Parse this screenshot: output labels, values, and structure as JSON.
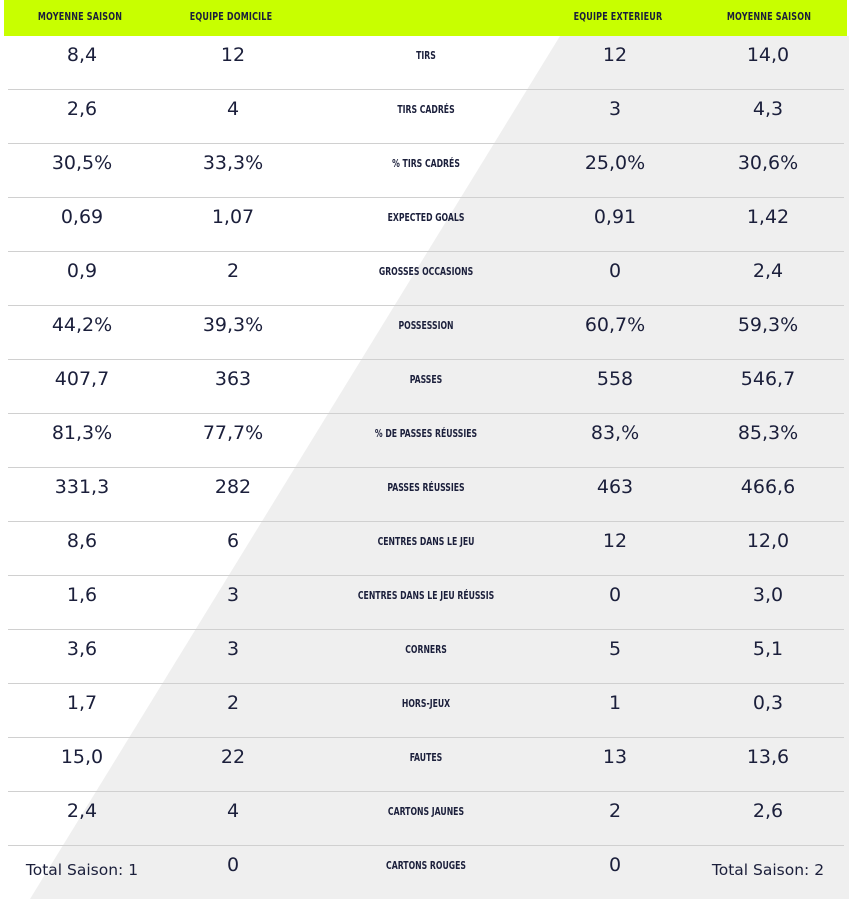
{
  "header": {
    "home_avg": "MOYENNE SAISON",
    "home_team": "EQUIPE DOMICILE",
    "stat": "",
    "away_team": "EQUIPE EXTERIEUR",
    "away_avg": "MOYENNE SAISON"
  },
  "colors": {
    "header_bg": "#c8ff00",
    "text": "#1b1f3b",
    "diagonal_panel": "#efefef",
    "row_divider": "#d0d0d0"
  },
  "rows": [
    {
      "home_avg": "8,4",
      "home": "12",
      "stat": "TIRS",
      "away": "12",
      "away_avg": "14,0"
    },
    {
      "home_avg": "2,6",
      "home": "4",
      "stat": "TIRS CADRÉS",
      "away": "3",
      "away_avg": "4,3"
    },
    {
      "home_avg": "30,5%",
      "home": "33,3%",
      "stat": "% TIRS CADRÉS",
      "away": "25,0%",
      "away_avg": "30,6%"
    },
    {
      "home_avg": "0,69",
      "home": "1,07",
      "stat": "EXPECTED GOALS",
      "away": "0,91",
      "away_avg": "1,42"
    },
    {
      "home_avg": "0,9",
      "home": "2",
      "stat": "GROSSES OCCASIONS",
      "away": "0",
      "away_avg": "2,4"
    },
    {
      "home_avg": "44,2%",
      "home": "39,3%",
      "stat": "POSSESSION",
      "away": "60,7%",
      "away_avg": "59,3%"
    },
    {
      "home_avg": "407,7",
      "home": "363",
      "stat": "PASSES",
      "away": "558",
      "away_avg": "546,7"
    },
    {
      "home_avg": "81,3%",
      "home": "77,7%",
      "stat": "% DE PASSES RÉUSSIES",
      "away": "83,%",
      "away_avg": "85,3%"
    },
    {
      "home_avg": "331,3",
      "home": "282",
      "stat": "PASSES RÉUSSIES",
      "away": "463",
      "away_avg": "466,6"
    },
    {
      "home_avg": "8,6",
      "home": "6",
      "stat": "CENTRES DANS LE JEU",
      "away": "12",
      "away_avg": "12,0"
    },
    {
      "home_avg": "1,6",
      "home": "3",
      "stat": "CENTRES DANS LE JEU RÉUSSIS",
      "away": "0",
      "away_avg": "3,0"
    },
    {
      "home_avg": "3,6",
      "home": "3",
      "stat": "CORNERS",
      "away": "5",
      "away_avg": "5,1"
    },
    {
      "home_avg": "1,7",
      "home": "2",
      "stat": "HORS-JEUX",
      "away": "1",
      "away_avg": "0,3"
    },
    {
      "home_avg": "15,0",
      "home": "22",
      "stat": "FAUTES",
      "away": "13",
      "away_avg": "13,6"
    },
    {
      "home_avg": "2,4",
      "home": "4",
      "stat": "CARTONS JAUNES",
      "away": "2",
      "away_avg": "2,6"
    },
    {
      "home_avg": "Total Saison: 1",
      "home": "0",
      "stat": "CARTONS ROUGES",
      "away": "0",
      "away_avg": "Total Saison: 2"
    }
  ]
}
